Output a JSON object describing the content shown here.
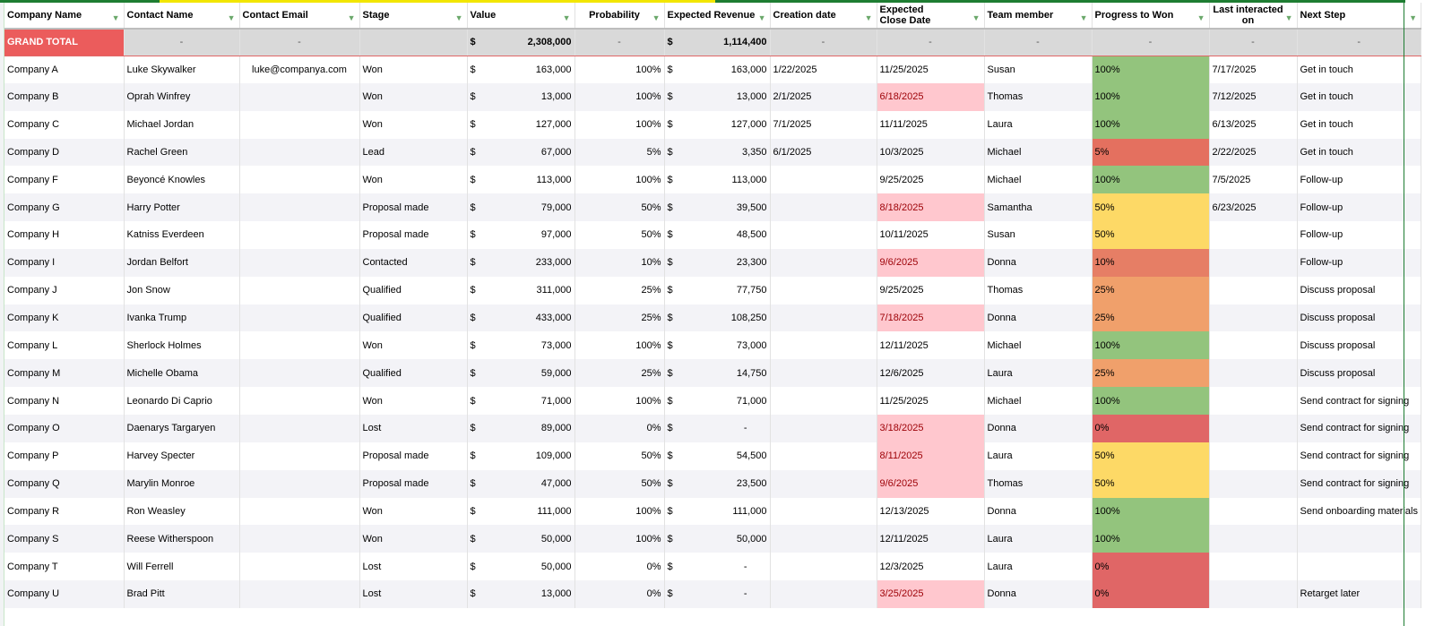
{
  "headers": [
    "Company Name",
    "Contact Name",
    "Contact Email",
    "Stage",
    "Value",
    "Probability",
    "Expected Revenue",
    "Creation date",
    "Expected Close Date",
    "Team member",
    "Progress to Won",
    "Last interacted on",
    "Next Step"
  ],
  "grand_total": {
    "label": "GRAND TOTAL",
    "dash": "-",
    "currency": "$",
    "value": "2,308,000",
    "expected_revenue": "1,114,400"
  },
  "colors": {
    "won": "#93c47d",
    "p50": "#fdd966",
    "p25": "#f0a06b",
    "p10": "#e67e65",
    "p5": "#e4705f",
    "p0": "#e06666",
    "late_bg": "#ffc7ce",
    "late_text": "#9c0006"
  },
  "rows": [
    [
      "Company A",
      "Luke Skywalker",
      "luke@companya.com",
      "Won",
      "163,000",
      "100%",
      "163,000",
      "1/22/2025",
      "11/25/2025",
      "Susan",
      "100%",
      "7/17/2025",
      "Get in touch",
      false
    ],
    [
      "Company B",
      "Oprah Winfrey",
      "",
      "Won",
      "13,000",
      "100%",
      "13,000",
      "2/1/2025",
      "6/18/2025",
      "Thomas",
      "100%",
      "7/12/2025",
      "Get in touch",
      true
    ],
    [
      "Company C",
      "Michael Jordan",
      "",
      "Won",
      "127,000",
      "100%",
      "127,000",
      "7/1/2025",
      "11/11/2025",
      "Laura",
      "100%",
      "6/13/2025",
      "Get in touch",
      false
    ],
    [
      "Company D",
      "Rachel Green",
      "",
      "Lead",
      "67,000",
      "5%",
      "3,350",
      "6/1/2025",
      "10/3/2025",
      "Michael",
      "5%",
      "2/22/2025",
      "Get in touch",
      false
    ],
    [
      "Company F",
      "Beyoncé Knowles",
      "",
      "Won",
      "113,000",
      "100%",
      "113,000",
      "",
      "9/25/2025",
      "Michael",
      "100%",
      "7/5/2025",
      "Follow-up",
      false
    ],
    [
      "Company G",
      "Harry Potter",
      "",
      "Proposal made",
      "79,000",
      "50%",
      "39,500",
      "",
      "8/18/2025",
      "Samantha",
      "50%",
      "6/23/2025",
      "Follow-up",
      true
    ],
    [
      "Company H",
      "Katniss Everdeen",
      "",
      "Proposal made",
      "97,000",
      "50%",
      "48,500",
      "",
      "10/11/2025",
      "Susan",
      "50%",
      "",
      "Follow-up",
      false
    ],
    [
      "Company I",
      "Jordan Belfort",
      "",
      "Contacted",
      "233,000",
      "10%",
      "23,300",
      "",
      "9/6/2025",
      "Donna",
      "10%",
      "",
      "Follow-up",
      true
    ],
    [
      "Company J",
      "Jon Snow",
      "",
      "Qualified",
      "311,000",
      "25%",
      "77,750",
      "",
      "9/25/2025",
      "Thomas",
      "25%",
      "",
      "Discuss proposal",
      false
    ],
    [
      "Company K",
      "Ivanka Trump",
      "",
      "Qualified",
      "433,000",
      "25%",
      "108,250",
      "",
      "7/18/2025",
      "Donna",
      "25%",
      "",
      "Discuss proposal",
      true
    ],
    [
      "Company L",
      "Sherlock Holmes",
      "",
      "Won",
      "73,000",
      "100%",
      "73,000",
      "",
      "12/11/2025",
      "Michael",
      "100%",
      "",
      "Discuss proposal",
      false
    ],
    [
      "Company M",
      "Michelle Obama",
      "",
      "Qualified",
      "59,000",
      "25%",
      "14,750",
      "",
      "12/6/2025",
      "Laura",
      "25%",
      "",
      "Discuss proposal",
      false
    ],
    [
      "Company N",
      "Leonardo Di Caprio",
      "",
      "Won",
      "71,000",
      "100%",
      "71,000",
      "",
      "11/25/2025",
      "Michael",
      "100%",
      "",
      "Send contract for signing",
      false
    ],
    [
      "Company O",
      "Daenarys Targaryen",
      "",
      "Lost",
      "89,000",
      "0%",
      "-",
      "",
      "3/18/2025",
      "Donna",
      "0%",
      "",
      "Send contract for signing",
      true
    ],
    [
      "Company P",
      "Harvey Specter",
      "",
      "Proposal made",
      "109,000",
      "50%",
      "54,500",
      "",
      "8/11/2025",
      "Laura",
      "50%",
      "",
      "Send contract for signing",
      true
    ],
    [
      "Company Q",
      "Marylin Monroe",
      "",
      "Proposal made",
      "47,000",
      "50%",
      "23,500",
      "",
      "9/6/2025",
      "Thomas",
      "50%",
      "",
      "Send contract for signing",
      true
    ],
    [
      "Company R",
      "Ron Weasley",
      "",
      "Won",
      "111,000",
      "100%",
      "111,000",
      "",
      "12/13/2025",
      "Donna",
      "100%",
      "",
      "Send onboarding materials",
      false
    ],
    [
      "Company S",
      "Reese Witherspoon",
      "",
      "Won",
      "50,000",
      "100%",
      "50,000",
      "",
      "12/11/2025",
      "Laura",
      "100%",
      "",
      "",
      false
    ],
    [
      "Company T",
      "Will Ferrell",
      "",
      "Lost",
      "50,000",
      "0%",
      "-",
      "",
      "12/3/2025",
      "Laura",
      "0%",
      "",
      "",
      false
    ],
    [
      "Company U",
      "Brad Pitt",
      "",
      "Lost",
      "13,000",
      "0%",
      "-",
      "",
      "3/25/2025",
      "Donna",
      "0%",
      "",
      "Retarget later",
      true
    ]
  ]
}
